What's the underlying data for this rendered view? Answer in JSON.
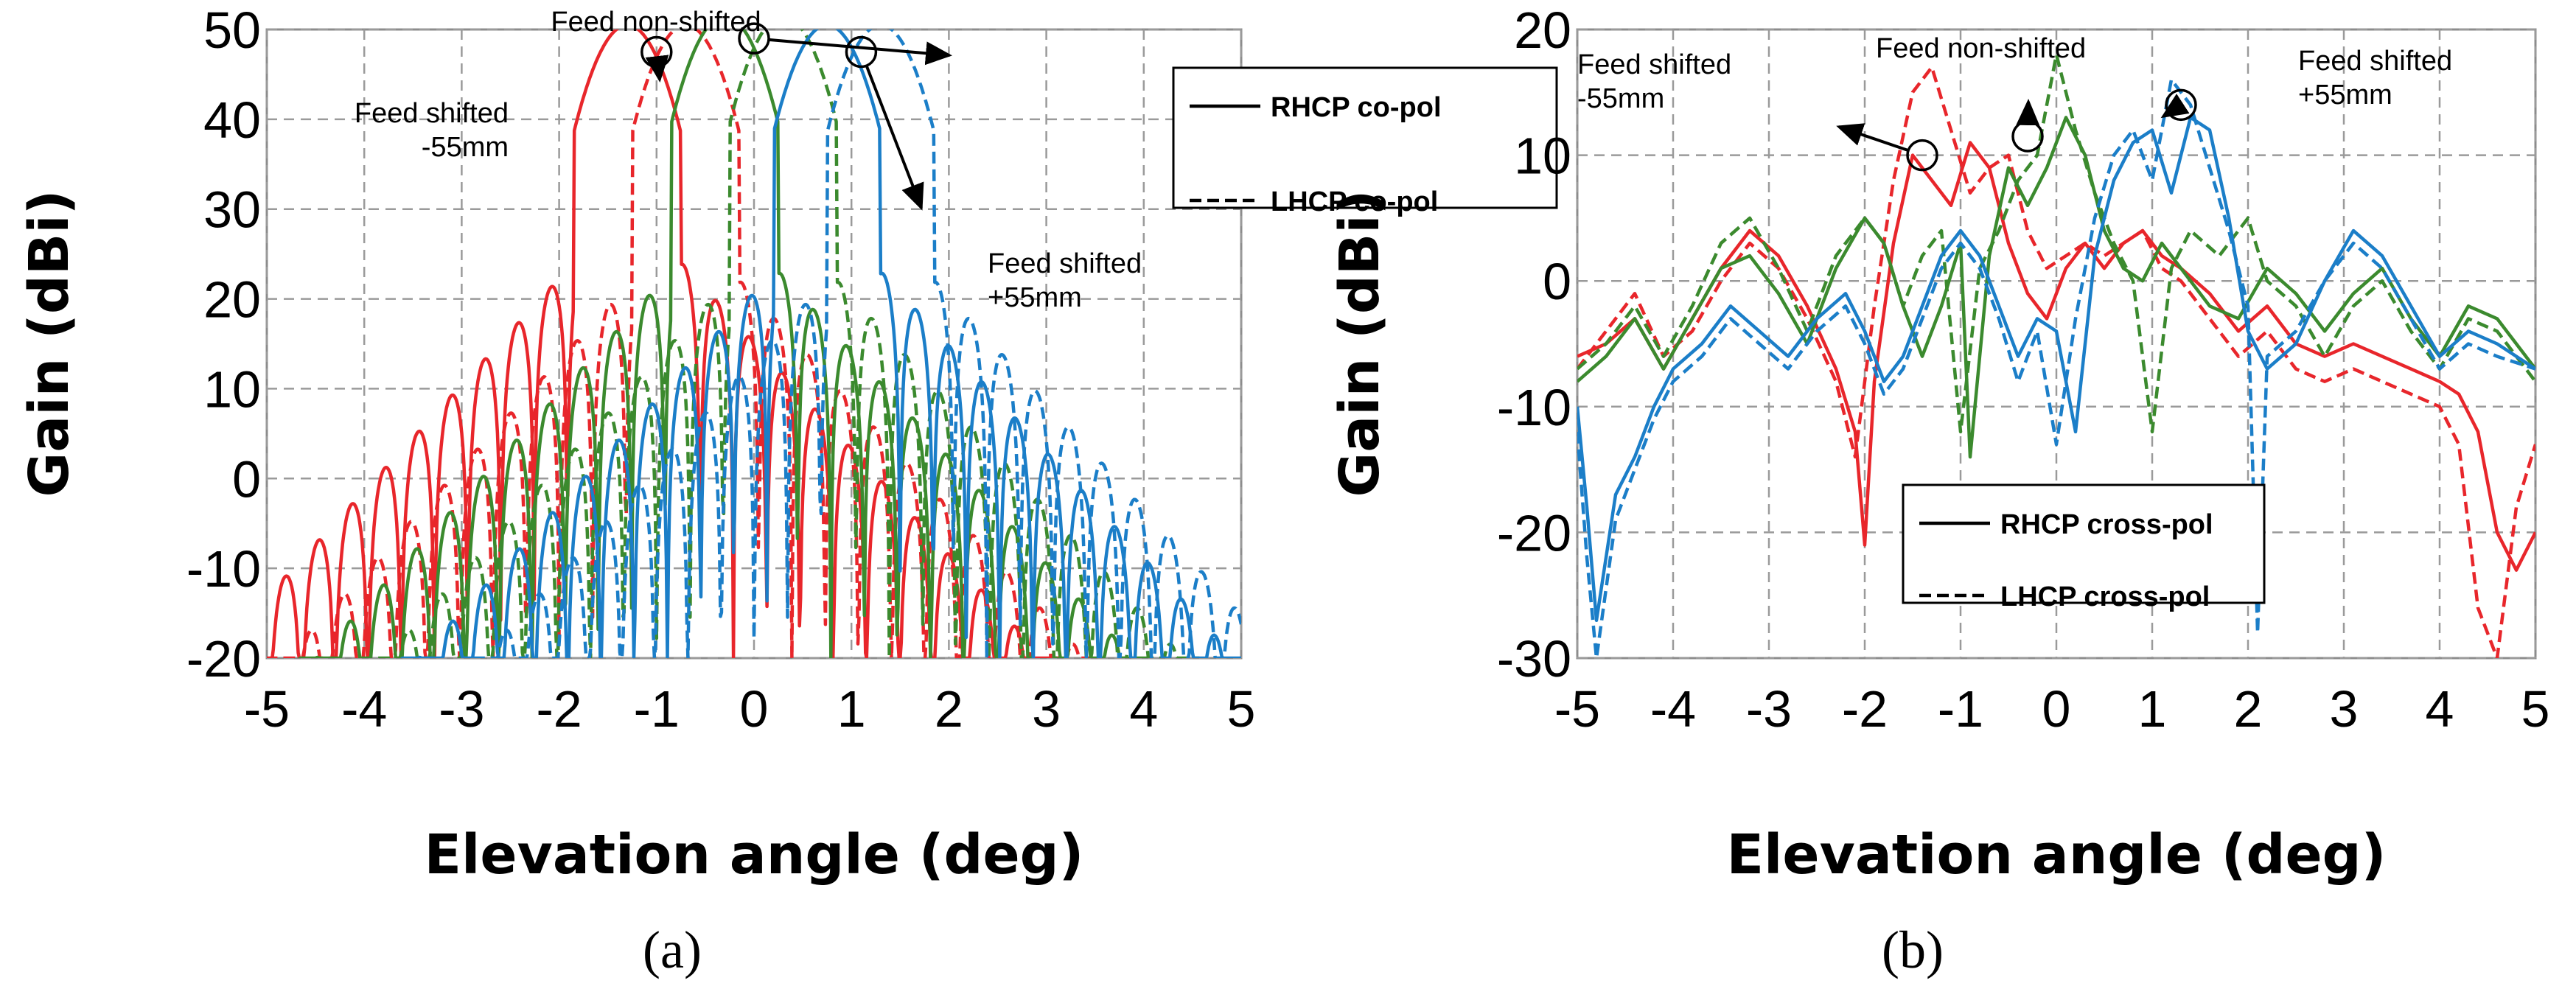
{
  "chart_data": [
    {
      "type": "line",
      "panel_label": "(a)",
      "xlabel": "Elevation angle (deg)",
      "ylabel": "Gain (dBi)",
      "xlim": [
        -5,
        5
      ],
      "ylim": [
        -20,
        50
      ],
      "xticks": [
        -5,
        -4,
        -3,
        -2,
        -1,
        0,
        1,
        2,
        3,
        4,
        5
      ],
      "yticks": [
        -20,
        -10,
        0,
        10,
        20,
        30,
        40,
        50
      ],
      "grid": true,
      "legend_position": "top-right",
      "legend": [
        {
          "label": "RHCP co-pol",
          "style": "solid"
        },
        {
          "label": "LHCP co-pol",
          "style": "dashed"
        }
      ],
      "annotations": [
        {
          "text": [
            "Feed non-shifted"
          ],
          "point": [
            0,
            49
          ]
        },
        {
          "text": [
            "Feed shifted",
            "-55mm"
          ],
          "point": [
            -1,
            47.5
          ]
        },
        {
          "text": [
            "Feed shifted",
            "+55mm"
          ],
          "point": [
            1.1,
            47.5
          ]
        }
      ],
      "series": [
        {
          "name": "RHCP co-pol, feed shifted -55mm",
          "color": "#e8262b",
          "style": "solid",
          "beam": -1.3,
          "peak": 50.5,
          "side": 26,
          "floor": 4
        },
        {
          "name": "LHCP co-pol, feed shifted -55mm",
          "color": "#e8262b",
          "style": "dashed",
          "beam": -0.7,
          "peak": 50.5,
          "side": 24,
          "floor": 1
        },
        {
          "name": "RHCP co-pol, feed non-shifted",
          "color": "#3b8a2e",
          "style": "solid",
          "beam": -0.3,
          "peak": 51.5,
          "side": 25,
          "floor": 3
        },
        {
          "name": "LHCP co-pol, feed non-shifted",
          "color": "#3b8a2e",
          "style": "dashed",
          "beam": 0.3,
          "peak": 51.5,
          "side": 24,
          "floor": 1
        },
        {
          "name": "RHCP co-pol, feed shifted +55mm",
          "color": "#1b7ec8",
          "style": "solid",
          "beam": 0.75,
          "peak": 50.5,
          "side": 25,
          "floor": 3
        },
        {
          "name": "LHCP co-pol, feed shifted +55mm",
          "color": "#1b7ec8",
          "style": "dashed",
          "beam": 1.3,
          "peak": 50.5,
          "side": 24,
          "floor": 1
        }
      ]
    },
    {
      "type": "line",
      "panel_label": "(b)",
      "xlabel": "Elevation angle (deg)",
      "ylabel": "Gain (dBi)",
      "xlim": [
        -5,
        5
      ],
      "ylim": [
        -30,
        20
      ],
      "xticks": [
        -5,
        -4,
        -3,
        -2,
        -1,
        0,
        1,
        2,
        3,
        4,
        5
      ],
      "yticks": [
        -30,
        -20,
        -10,
        0,
        10,
        20
      ],
      "grid": true,
      "legend_position": "bottom-center",
      "legend": [
        {
          "label": "RHCP cross-pol",
          "style": "solid"
        },
        {
          "label": "LHCP cross-pol",
          "style": "dashed"
        }
      ],
      "annotations": [
        {
          "text": [
            "Feed non-shifted"
          ],
          "point": [
            -0.3,
            11.5
          ]
        },
        {
          "text": [
            "Feed shifted",
            "-55mm"
          ],
          "point": [
            -1.4,
            10
          ]
        },
        {
          "text": [
            "Feed shifted",
            "+55mm"
          ],
          "point": [
            1.3,
            14
          ]
        }
      ],
      "series": [
        {
          "name": "RHCP cross-pol, feed shifted -55mm",
          "color": "#e8262b",
          "style": "solid",
          "x": [
            -5,
            -4.7,
            -4.4,
            -4.1,
            -3.8,
            -3.5,
            -3.2,
            -2.9,
            -2.6,
            -2.3,
            -2.1,
            -2.0,
            -1.9,
            -1.7,
            -1.5,
            -1.3,
            -1.1,
            -0.9,
            -0.7,
            -0.5,
            -0.3,
            -0.1,
            0.1,
            0.3,
            0.5,
            0.7,
            0.9,
            1.1,
            1.3,
            1.6,
            1.9,
            2.2,
            2.5,
            2.8,
            3.1,
            3.4,
            3.7,
            4.0,
            4.2,
            4.4,
            4.6,
            4.8,
            5.0
          ],
          "y": [
            -6,
            -5,
            -3,
            -7,
            -3,
            1,
            4,
            2,
            -2,
            -7,
            -12,
            -21,
            -8,
            3,
            10,
            8,
            6,
            11,
            9,
            3,
            -1,
            -3,
            1,
            3,
            1,
            3,
            4,
            2,
            1,
            -1,
            -4,
            -2,
            -5,
            -6,
            -5,
            -6,
            -7,
            -8,
            -9,
            -12,
            -20,
            -23,
            -20
          ]
        },
        {
          "name": "LHCP cross-pol, feed shifted -55mm",
          "color": "#e8262b",
          "style": "dashed",
          "x": [
            -5,
            -4.7,
            -4.4,
            -4.1,
            -3.8,
            -3.5,
            -3.2,
            -2.9,
            -2.6,
            -2.3,
            -2.1,
            -1.9,
            -1.7,
            -1.5,
            -1.3,
            -1.1,
            -0.9,
            -0.7,
            -0.5,
            -0.3,
            -0.1,
            0.1,
            0.3,
            0.5,
            0.7,
            0.9,
            1.1,
            1.3,
            1.6,
            1.9,
            2.2,
            2.5,
            2.8,
            3.1,
            3.4,
            3.7,
            4.0,
            4.2,
            4.4,
            4.6,
            4.8,
            5.0
          ],
          "y": [
            -7,
            -4,
            -1,
            -6,
            -4,
            0,
            3,
            1,
            -3,
            -8,
            -14,
            -2,
            8,
            15,
            17,
            12,
            7,
            9,
            10,
            4,
            1,
            2,
            3,
            2,
            3,
            4,
            1,
            0,
            -3,
            -6,
            -4,
            -7,
            -8,
            -7,
            -8,
            -9,
            -10,
            -13,
            -26,
            -30,
            -18,
            -13
          ]
        },
        {
          "name": "RHCP cross-pol, feed non-shifted",
          "color": "#3b8a2e",
          "style": "solid",
          "x": [
            -5,
            -4.7,
            -4.4,
            -4.1,
            -3.8,
            -3.5,
            -3.2,
            -2.9,
            -2.6,
            -2.3,
            -2.0,
            -1.8,
            -1.6,
            -1.4,
            -1.2,
            -1.0,
            -0.9,
            -0.7,
            -0.5,
            -0.3,
            -0.1,
            0.1,
            0.3,
            0.5,
            0.7,
            0.9,
            1.1,
            1.3,
            1.6,
            1.9,
            2.2,
            2.5,
            2.8,
            3.1,
            3.4,
            3.7,
            4.0,
            4.3,
            4.6,
            5.0
          ],
          "y": [
            -8,
            -6,
            -3,
            -7,
            -3,
            1,
            2,
            -1,
            -5,
            1,
            5,
            3,
            -2,
            -6,
            -2,
            3,
            -14,
            2,
            9,
            6,
            9,
            13,
            10,
            4,
            1,
            0,
            3,
            1,
            -2,
            -3,
            1,
            -1,
            -4,
            -1,
            1,
            -3,
            -6,
            -2,
            -3,
            -7
          ]
        },
        {
          "name": "LHCP cross-pol, feed non-shifted",
          "color": "#3b8a2e",
          "style": "dashed",
          "x": [
            -5,
            -4.7,
            -4.4,
            -4.1,
            -3.8,
            -3.5,
            -3.2,
            -2.9,
            -2.6,
            -2.3,
            -2.0,
            -1.8,
            -1.6,
            -1.4,
            -1.2,
            -1.0,
            -0.8,
            -0.6,
            -0.4,
            -0.2,
            0.0,
            0.2,
            0.4,
            0.6,
            0.8,
            1.0,
            1.2,
            1.4,
            1.7,
            2.0,
            2.2,
            2.5,
            2.8,
            3.1,
            3.4,
            3.7,
            4.0,
            4.3,
            4.6,
            5.0
          ],
          "y": [
            -7,
            -5,
            -2,
            -6,
            -2,
            3,
            5,
            1,
            -4,
            2,
            5,
            3,
            -2,
            2,
            4,
            -12,
            1,
            4,
            8,
            10,
            18,
            12,
            7,
            3,
            0,
            -12,
            1,
            4,
            2,
            5,
            0,
            -2,
            -6,
            -2,
            0,
            -4,
            -7,
            -3,
            -4,
            -8
          ]
        },
        {
          "name": "RHCP cross-pol, feed shifted +55mm",
          "color": "#1b7ec8",
          "style": "solid",
          "x": [
            -5,
            -4.9,
            -4.8,
            -4.6,
            -4.4,
            -4.2,
            -4.0,
            -3.7,
            -3.4,
            -3.1,
            -2.8,
            -2.5,
            -2.2,
            -2.0,
            -1.8,
            -1.6,
            -1.4,
            -1.2,
            -1.0,
            -0.8,
            -0.6,
            -0.4,
            -0.2,
            0.0,
            0.2,
            0.4,
            0.6,
            0.8,
            1.0,
            1.2,
            1.4,
            1.6,
            1.8,
            2.0,
            2.2,
            2.5,
            2.8,
            3.1,
            3.4,
            3.7,
            4.0,
            4.3,
            4.6,
            5.0
          ],
          "y": [
            -10,
            -18,
            -27,
            -17,
            -14,
            -10,
            -7,
            -5,
            -2,
            -4,
            -6,
            -3,
            -1,
            -4,
            -8,
            -6,
            -2,
            2,
            4,
            2,
            -2,
            -6,
            -3,
            -4,
            -12,
            2,
            8,
            11,
            12,
            7,
            13,
            12,
            5,
            -4,
            -7,
            -5,
            0,
            4,
            2,
            -2,
            -6,
            -4,
            -5,
            -7
          ]
        },
        {
          "name": "LHCP cross-pol, feed shifted +55mm",
          "color": "#1b7ec8",
          "style": "dashed",
          "x": [
            -5,
            -4.9,
            -4.8,
            -4.6,
            -4.4,
            -4.2,
            -4.0,
            -3.7,
            -3.4,
            -3.1,
            -2.8,
            -2.5,
            -2.2,
            -2.0,
            -1.8,
            -1.6,
            -1.4,
            -1.2,
            -1.0,
            -0.8,
            -0.6,
            -0.4,
            -0.2,
            0.0,
            0.2,
            0.4,
            0.6,
            0.8,
            1.0,
            1.2,
            1.4,
            1.6,
            1.8,
            2.0,
            2.1,
            2.2,
            2.5,
            2.8,
            3.1,
            3.4,
            3.7,
            4.0,
            4.3,
            4.6,
            5.0
          ],
          "y": [
            -12,
            -22,
            -30,
            -19,
            -15,
            -11,
            -8,
            -6,
            -3,
            -5,
            -7,
            -4,
            -2,
            -5,
            -9,
            -7,
            -3,
            1,
            3,
            1,
            -3,
            -8,
            -4,
            -13,
            -3,
            5,
            10,
            12,
            8,
            16,
            14,
            9,
            4,
            -2,
            -28,
            -6,
            -4,
            0,
            3,
            1,
            -3,
            -7,
            -5,
            -6,
            -7
          ]
        }
      ]
    }
  ]
}
